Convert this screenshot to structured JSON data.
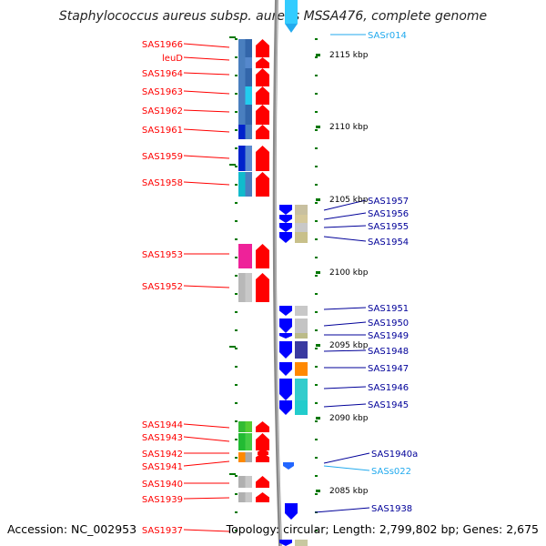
{
  "title": "Staphylococcus aureus subsp. aureus MSSA476, complete genome",
  "footer": {
    "accession": "Accession: NC_002953",
    "summary": "Topology: circular; Length: 2,799,802 bp; Genes: 2,675"
  },
  "colors": {
    "left_label": "#ff0000",
    "right_label": "#000099",
    "rna_label": "#22aaee",
    "forward_arrow": "#ff0000",
    "reverse_arrow": "#0000ff",
    "backbone": "#999999",
    "tick": "#007700"
  },
  "scale_labels": [
    "2115 kbp",
    "2110 kbp",
    "2105 kbp",
    "2100 kbp",
    "2095 kbp",
    "2090 kbp",
    "2085 kbp"
  ],
  "left_genes": [
    "SAS1966",
    "leuD",
    "SAS1964",
    "SAS1963",
    "SAS1962",
    "SAS1961",
    "SAS1959",
    "SAS1958",
    "SAS1953",
    "SAS1952",
    "SAS1944",
    "SAS1943",
    "SAS1942",
    "SAS1941",
    "SAS1940",
    "SAS1939",
    "SAS1937"
  ],
  "right_genes": [
    "SASr014",
    "SAS1957",
    "SAS1956",
    "SAS1955",
    "SAS1954",
    "SAS1951",
    "SAS1950",
    "SAS1949",
    "SAS1948",
    "SAS1947",
    "SAS1946",
    "SAS1945",
    "SAS1940a",
    "SASs022",
    "SAS1938"
  ]
}
